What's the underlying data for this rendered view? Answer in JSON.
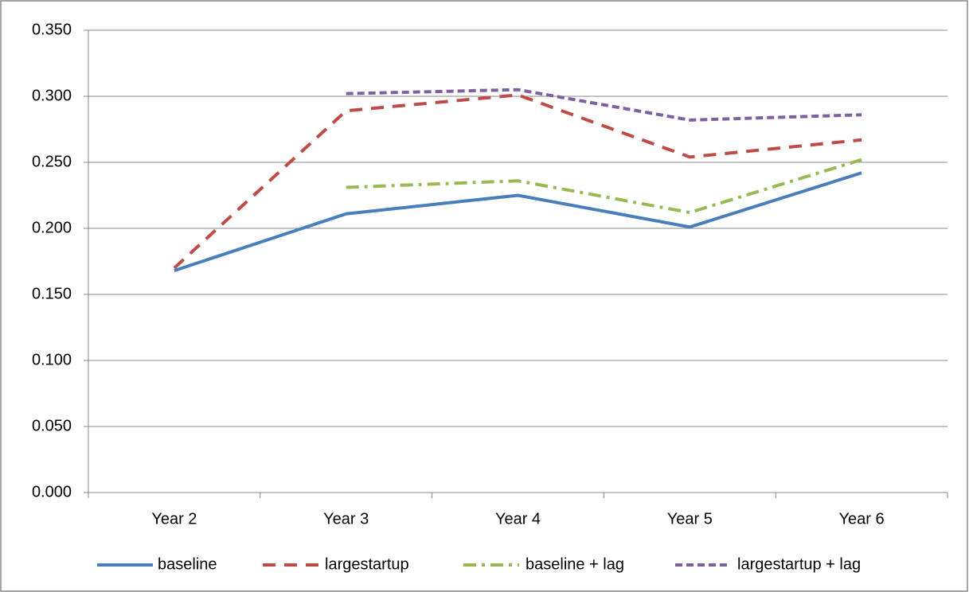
{
  "chart_data": {
    "type": "line",
    "categories": [
      "Year 2",
      "Year 3",
      "Year 4",
      "Year 5",
      "Year 6"
    ],
    "series": [
      {
        "name": "baseline",
        "color": "#4a7ebb",
        "dash": "solid",
        "values": [
          0.168,
          0.211,
          0.225,
          0.201,
          0.242
        ]
      },
      {
        "name": "largestartup",
        "color": "#be4b48",
        "dash": "dashed",
        "values": [
          0.17,
          0.289,
          0.301,
          0.254,
          0.267
        ]
      },
      {
        "name": "baseline + lag",
        "color": "#98b954",
        "dash": "dashdot",
        "values": [
          null,
          0.231,
          0.236,
          0.212,
          0.252
        ]
      },
      {
        "name": "largestartup + lag",
        "color": "#7d60a0",
        "dash": "dotted",
        "values": [
          null,
          0.302,
          0.305,
          0.282,
          0.286
        ]
      }
    ],
    "ylim": [
      0,
      0.35
    ],
    "yticks": [
      {
        "value": 0,
        "label": "0.000"
      },
      {
        "value": 0.05,
        "label": "0.050"
      },
      {
        "value": 0.1,
        "label": "0.100"
      },
      {
        "value": 0.15,
        "label": "0.150"
      },
      {
        "value": 0.2,
        "label": "0.200"
      },
      {
        "value": 0.25,
        "label": "0.250"
      },
      {
        "value": 0.3,
        "label": "0.300"
      },
      {
        "value": 0.35,
        "label": "0.350"
      }
    ],
    "grid": true,
    "legend": "bottom"
  }
}
